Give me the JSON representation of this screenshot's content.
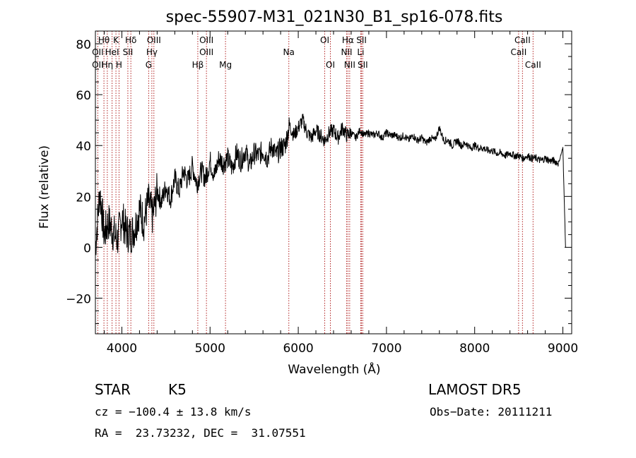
{
  "chart_data": {
    "type": "line",
    "title": "spec-55907-M31_021N30_B1_sp16-078.fits",
    "xlabel": "Wavelength (Å)",
    "ylabel": "Flux (relative)",
    "xlim": [
      3700,
      9100
    ],
    "ylim": [
      -34,
      85
    ],
    "xticks": [
      4000,
      5000,
      6000,
      7000,
      8000,
      9000
    ],
    "yticks": [
      -20,
      0,
      20,
      40,
      60,
      80
    ],
    "line_color": "#000000",
    "marker_color": "#b22222",
    "series": [
      {
        "x": [
          3700,
          3750,
          3800,
          3850,
          3900,
          3950,
          4000,
          4050,
          4100,
          4150,
          4200,
          4250,
          4300,
          4350,
          4400,
          4450,
          4500,
          4550,
          4600,
          4650,
          4700,
          4750,
          4800,
          4850,
          4900,
          4950,
          5000,
          5050,
          5100,
          5150,
          5200,
          5250,
          5300,
          5350,
          5400,
          5450,
          5500,
          5550,
          5600,
          5650,
          5700,
          5750,
          5800,
          5850,
          5900,
          5950,
          6000,
          6050,
          6100,
          6150,
          6200,
          6250,
          6300,
          6350,
          6400,
          6450,
          6500,
          6550,
          6600,
          6650,
          6700,
          6750,
          6800,
          6850,
          6900,
          6950,
          7000,
          7050,
          7100,
          7150,
          7200,
          7250,
          7300,
          7350,
          7400,
          7450,
          7500,
          7550,
          7600,
          7650,
          7700,
          7750,
          7800,
          7850,
          7900,
          7950,
          8000,
          8050,
          8100,
          8150,
          8200,
          8250,
          8300,
          8350,
          8400,
          8450,
          8500,
          8550,
          8600,
          8650,
          8700,
          8750,
          8800,
          8850,
          8900,
          8950,
          9000,
          9030
        ],
        "y": [
          0,
          22,
          5,
          10,
          6,
          3,
          12,
          6,
          5,
          8,
          15,
          10,
          18,
          12,
          22,
          18,
          24,
          19,
          27,
          22,
          30,
          26,
          32,
          25,
          30,
          27,
          34,
          28,
          35,
          33,
          35,
          31,
          37,
          34,
          38,
          32,
          37,
          36,
          38,
          35,
          40,
          36,
          39,
          40,
          48,
          44,
          47,
          50,
          45,
          43,
          46,
          44,
          42,
          45,
          46,
          43,
          47,
          44,
          45,
          43,
          46,
          44,
          45,
          44,
          45,
          43,
          45,
          44,
          44,
          43,
          44,
          42,
          44,
          42,
          43,
          41,
          43,
          42,
          47,
          42,
          42,
          40,
          42,
          40,
          41,
          39,
          40,
          39,
          39,
          38,
          38,
          37,
          37,
          36,
          37,
          36,
          36,
          35,
          36,
          35,
          35,
          34,
          35,
          34,
          34,
          33,
          39,
          0
        ]
      }
    ],
    "line_labels": [
      {
        "label": "Hθ",
        "wl": 3797,
        "row": 1
      },
      {
        "label": "K",
        "wl": 3933,
        "row": 1
      },
      {
        "label": "Hδ",
        "wl": 4102,
        "row": 1
      },
      {
        "label": "OIII",
        "wl": 4363,
        "row": 1
      },
      {
        "label": "OIII",
        "wl": 4959,
        "row": 1
      },
      {
        "label": "OI",
        "wl": 6300,
        "row": 1
      },
      {
        "label": "Hα",
        "wl": 6563,
        "row": 1
      },
      {
        "label": "SII",
        "wl": 6717,
        "row": 1
      },
      {
        "label": "CaII",
        "wl": 8542,
        "row": 1
      },
      {
        "label": "OII",
        "wl": 3727,
        "row": 2
      },
      {
        "label": "HeI",
        "wl": 3889,
        "row": 2
      },
      {
        "label": "SII",
        "wl": 4068,
        "row": 2
      },
      {
        "label": "Hγ",
        "wl": 4340,
        "row": 2
      },
      {
        "label": "OIII",
        "wl": 4959,
        "row": 2
      },
      {
        "label": "Na",
        "wl": 5893,
        "row": 2
      },
      {
        "label": "NII",
        "wl": 6548,
        "row": 2
      },
      {
        "label": "Li",
        "wl": 6708,
        "row": 2
      },
      {
        "label": "CaII",
        "wl": 8498,
        "row": 2
      },
      {
        "label": "OII",
        "wl": 3727,
        "row": 3
      },
      {
        "label": "Hη",
        "wl": 3835,
        "row": 3
      },
      {
        "label": "H",
        "wl": 3968,
        "row": 3
      },
      {
        "label": "G",
        "wl": 4304,
        "row": 3
      },
      {
        "label": "Hβ",
        "wl": 4861,
        "row": 3
      },
      {
        "label": "Mg",
        "wl": 5175,
        "row": 3
      },
      {
        "label": "OI",
        "wl": 6364,
        "row": 3
      },
      {
        "label": "NII",
        "wl": 6583,
        "row": 3
      },
      {
        "label": "SII",
        "wl": 6731,
        "row": 3
      },
      {
        "label": "CaII",
        "wl": 8662,
        "row": 3
      }
    ]
  },
  "info": {
    "class_label": "STAR",
    "subclass": "K5",
    "survey": "LAMOST DR5",
    "cz": "cz = −100.4 ± 13.8 km/s",
    "obs_date": "Obs−Date: 20111211",
    "radec": "RA =  23.73232, DEC =  31.07551"
  }
}
